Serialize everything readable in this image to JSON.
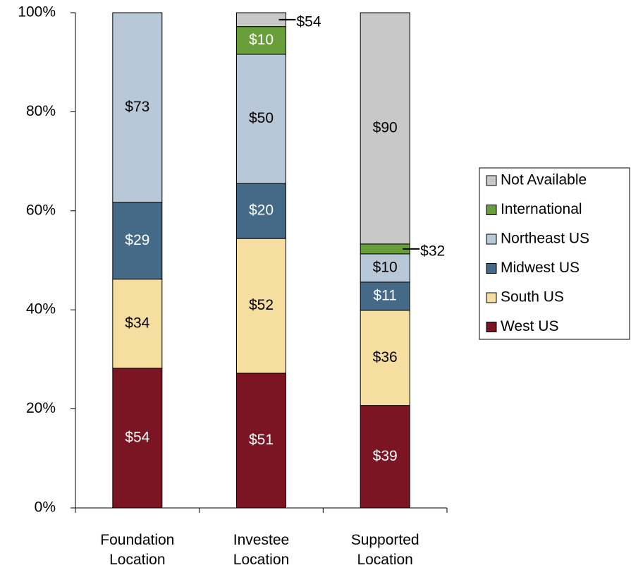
{
  "chart_data": {
    "type": "stacked_bar",
    "categories": [
      "Foundation Location",
      "Investee Location",
      "Supported Location"
    ],
    "ylim": [
      0,
      100
    ],
    "yticks": [
      {
        "value": 0,
        "label": "0%"
      },
      {
        "value": 20,
        "label": "20%"
      },
      {
        "value": 40,
        "label": "40%"
      },
      {
        "value": 60,
        "label": "60%"
      },
      {
        "value": 80,
        "label": "80%"
      },
      {
        "value": 100,
        "label": "100%"
      }
    ],
    "legend": "right",
    "series": [
      {
        "name": "West US",
        "color": "#7b1523",
        "label_color": "#ffffff",
        "values": [
          28.2,
          27.2,
          20.7
        ],
        "amount_labels": [
          "$54",
          "$51",
          "$39"
        ]
      },
      {
        "name": "South US",
        "color": "#f6dea0",
        "label_color": "#000000",
        "values": [
          18.0,
          27.2,
          19.2
        ],
        "amount_labels": [
          "$34",
          "$52",
          "$36"
        ]
      },
      {
        "name": "Midwest US",
        "color": "#456a87",
        "label_color": "#ffffff",
        "values": [
          15.5,
          11.1,
          5.7
        ],
        "amount_labels": [
          "$29",
          "$20",
          "$11"
        ]
      },
      {
        "name": "Northeast US",
        "color": "#b8c8d8",
        "label_color": "#000000",
        "values": [
          38.3,
          26.1,
          5.7
        ],
        "amount_labels": [
          "$73",
          "$50",
          "$10"
        ]
      },
      {
        "name": "International",
        "color": "#6a9e3a",
        "label_color": "#ffffff",
        "values": [
          0,
          5.6,
          2.0
        ],
        "amount_labels": [
          null,
          "$10",
          "$32"
        ]
      },
      {
        "name": "Not Available",
        "color": "#c8c8c8",
        "label_color": "#000000",
        "values": [
          0,
          2.8,
          46.7
        ],
        "amount_labels": [
          null,
          "$54",
          "$90"
        ]
      }
    ]
  }
}
